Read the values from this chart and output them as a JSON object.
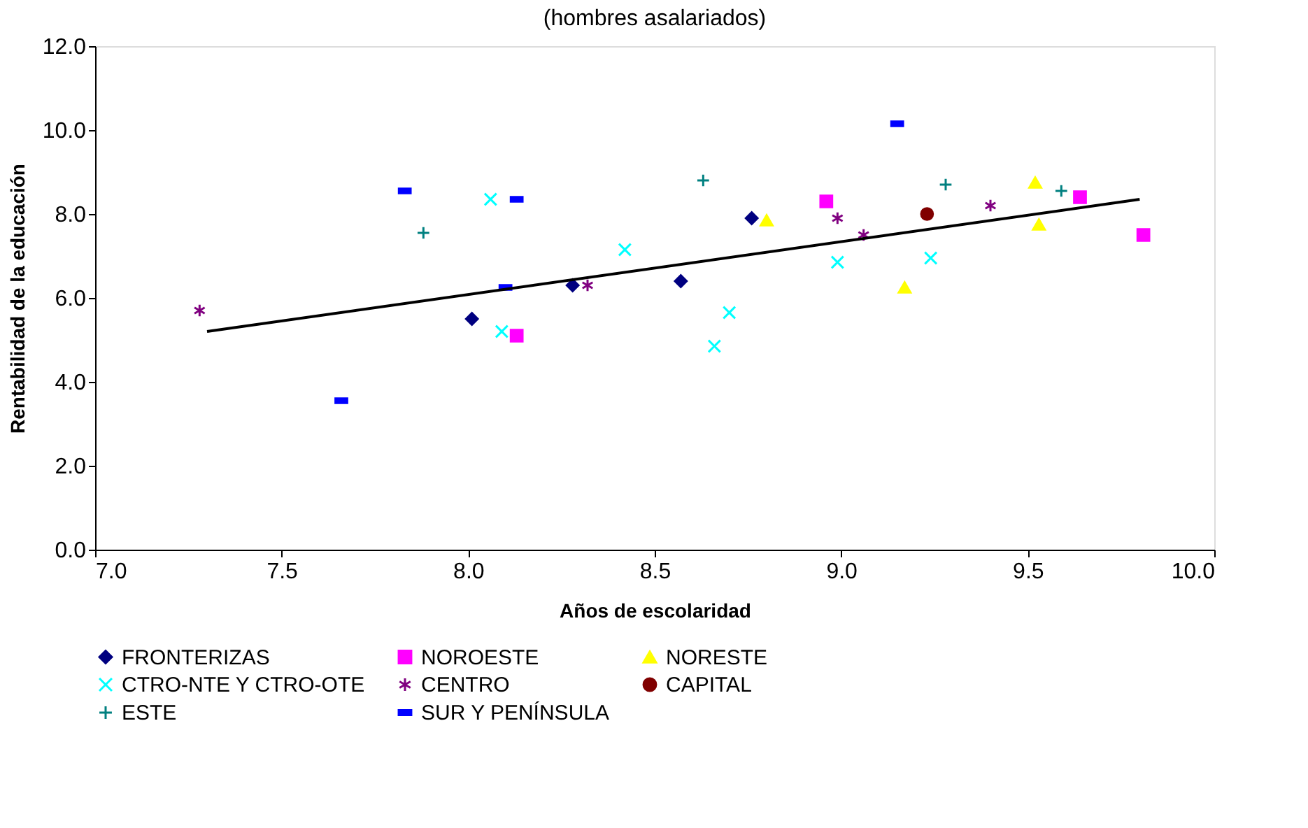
{
  "chart_data": {
    "type": "scatter",
    "title": "(hombres asalariados)",
    "xlabel": "Años de escolaridad",
    "ylabel": "Rentabilidad de la educación",
    "xlim": [
      7.0,
      10.0
    ],
    "xticks": [
      {
        "value": 7,
        "label": "7.0"
      },
      7.5,
      {
        "value": 8,
        "label": "8.0"
      },
      8.5,
      {
        "value": 9,
        "label": "9.0"
      },
      9.5,
      {
        "value": 10,
        "label": "10.0"
      }
    ],
    "ylim": [
      0,
      12
    ],
    "yticks": [
      {
        "value": 0,
        "label": "0.0"
      },
      {
        "value": 2,
        "label": "2.0"
      },
      {
        "value": 4,
        "label": "4.0"
      },
      {
        "value": 6,
        "label": "6.0"
      },
      {
        "value": 8,
        "label": "8.0"
      },
      {
        "value": 10,
        "label": "10.0"
      },
      {
        "value": 12,
        "label": "12.0"
      }
    ],
    "grid": false,
    "legend": "bottom",
    "series": [
      {
        "name": "FRONTERIZAS",
        "color": "#000080",
        "marker": "diamond",
        "x": [
          8.01,
          8.28,
          8.57,
          8.76
        ],
        "values": [
          5.5,
          6.3,
          6.4,
          7.9
        ]
      },
      {
        "name": "NOROESTE",
        "color": "#ff00ff",
        "marker": "square",
        "x": [
          8.13,
          8.96,
          9.64,
          9.81
        ],
        "values": [
          5.1,
          8.3,
          8.4,
          7.5
        ]
      },
      {
        "name": "NORESTE",
        "color": "#ffff00",
        "marker": "triangle",
        "x": [
          8.8,
          9.17,
          9.52,
          9.53
        ],
        "values": [
          7.85,
          6.25,
          8.75,
          7.75
        ]
      },
      {
        "name": "CTRO-NTE Y CTRO-OTE",
        "color": "#00ffff",
        "marker": "x",
        "x": [
          8.06,
          8.09,
          8.42,
          8.66,
          8.7,
          8.99,
          9.24
        ],
        "values": [
          8.35,
          5.2,
          7.15,
          4.85,
          5.65,
          6.85,
          6.95
        ]
      },
      {
        "name": "CENTRO",
        "color": "#800080",
        "marker": "cross",
        "x": [
          7.28,
          8.32,
          8.99,
          9.06,
          9.4
        ],
        "values": [
          5.7,
          6.3,
          7.9,
          7.5,
          8.2
        ]
      },
      {
        "name": "CAPITAL",
        "color": "#800000",
        "marker": "circle",
        "x": [
          9.23
        ],
        "values": [
          8.0
        ]
      },
      {
        "name": "ESTE",
        "color": "#008080",
        "marker": "plus",
        "x": [
          7.88,
          8.63,
          9.28,
          9.59
        ],
        "values": [
          7.55,
          8.8,
          8.7,
          8.55
        ]
      },
      {
        "name": "SUR Y PENÍNSULA",
        "color": "#0000ff",
        "x": [
          7.66,
          7.83,
          8.1,
          8.13,
          9.15
        ],
        "values": [
          3.55,
          8.55,
          6.25,
          8.35,
          10.15
        ]
      },
      {
        "type": "line",
        "color": "#000000",
        "line_style": "solid",
        "x": [
          7.3,
          9.8
        ],
        "values": [
          5.2,
          8.35
        ]
      }
    ]
  }
}
